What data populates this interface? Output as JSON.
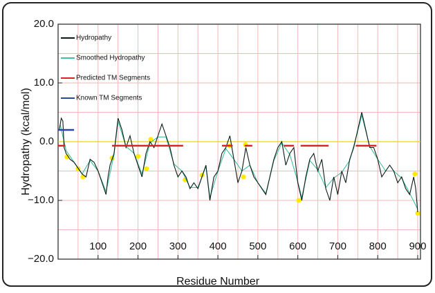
{
  "chart_data": {
    "type": "line",
    "xlabel": "Residue Number",
    "ylabel": "Hydropathy (kcal/mol)",
    "xlim": [
      0,
      907
    ],
    "ylim": [
      -20,
      20
    ],
    "xticks": [
      100,
      200,
      300,
      400,
      500,
      600,
      700,
      800,
      900
    ],
    "yticks": [
      {
        "value": -20,
        "label": "−20.0"
      },
      {
        "value": -10,
        "label": "−10.0"
      },
      {
        "value": 0,
        "label": "0.0"
      },
      {
        "value": 10,
        "label": "10.0"
      },
      {
        "value": 20,
        "label": "20.0"
      }
    ],
    "x_gridlines": [
      50,
      100,
      150,
      200,
      250,
      300,
      350,
      400,
      450,
      500,
      550,
      600,
      650,
      700,
      750,
      800,
      850,
      900
    ],
    "y_gridlines": [
      -15,
      -10,
      -5,
      0,
      5,
      10,
      15
    ],
    "grid_color": "#f2b8b8",
    "reference_line": {
      "value": 0,
      "color": "#e8d800"
    },
    "legend": "upper left",
    "series": [
      {
        "name": "Hydropathy",
        "color": "#0a1a14",
        "x": [
          3,
          8,
          12,
          15,
          20,
          30,
          40,
          50,
          60,
          70,
          80,
          90,
          100,
          110,
          120,
          125,
          130,
          140,
          150,
          160,
          170,
          180,
          190,
          200,
          210,
          220,
          230,
          240,
          250,
          260,
          270,
          280,
          290,
          300,
          310,
          320,
          330,
          340,
          350,
          360,
          370,
          380,
          390,
          400,
          410,
          420,
          430,
          440,
          450,
          460,
          470,
          480,
          490,
          500,
          510,
          520,
          530,
          540,
          550,
          560,
          570,
          580,
          590,
          600,
          610,
          620,
          630,
          640,
          650,
          660,
          670,
          680,
          690,
          700,
          710,
          720,
          730,
          740,
          750,
          760,
          770,
          780,
          790,
          800,
          810,
          820,
          830,
          840,
          850,
          860,
          870,
          880,
          890,
          895,
          900
        ],
        "values": [
          2,
          4,
          3.5,
          -1,
          -2,
          -3,
          -3.5,
          -4.5,
          -5.5,
          -6,
          -3,
          -3.5,
          -5,
          -7,
          -9,
          -6,
          -4,
          -2,
          4,
          2,
          -1,
          1,
          -2,
          -4,
          -6,
          -2,
          0,
          -1,
          1,
          3,
          1,
          -1,
          -4,
          -6,
          -5,
          -6,
          -8,
          -7,
          -8,
          -6,
          -4,
          -10,
          -6,
          -5,
          -2,
          -1,
          1,
          -3,
          -7,
          -5,
          -1,
          -4,
          -6,
          -7,
          -8,
          -9,
          -6,
          -3,
          -1,
          0,
          -4,
          -2,
          -1,
          -7,
          -10,
          -6,
          -3,
          -2,
          -5,
          -3,
          -8,
          -10,
          -6,
          -9,
          -5,
          -7,
          -3,
          -1,
          2,
          5,
          2,
          -1,
          -1,
          -3,
          -6,
          -5,
          -4,
          -5,
          -7,
          -6,
          -8,
          -9,
          -6,
          -8,
          -12
        ]
      },
      {
        "name": "Smoothed Hydropathy",
        "color": "#3fbf9f",
        "x": [
          5,
          20,
          40,
          60,
          80,
          100,
          120,
          140,
          150,
          170,
          190,
          210,
          230,
          250,
          270,
          290,
          310,
          330,
          350,
          370,
          380,
          400,
          420,
          440,
          460,
          480,
          500,
          520,
          540,
          560,
          580,
          600,
          610,
          630,
          650,
          670,
          690,
          710,
          730,
          750,
          760,
          780,
          800,
          820,
          840,
          860,
          880,
          900
        ],
        "values": [
          3,
          -1.5,
          -3.5,
          -5.5,
          -3.2,
          -5,
          -8.5,
          -2.2,
          3.5,
          -0.8,
          -2,
          -5.5,
          -0.2,
          0.8,
          0.8,
          -3.8,
          -5,
          -7.8,
          -7.8,
          -4.2,
          -9.5,
          -5,
          -1.2,
          -3,
          -5,
          -4,
          -7,
          -8.8,
          -3.2,
          -0.2,
          -2.2,
          -6.8,
          -9.5,
          -3.2,
          -4.8,
          -7.8,
          -6.2,
          -5.2,
          -3.2,
          1.8,
          4.5,
          -0.8,
          -3,
          -5,
          -5,
          -6.2,
          -8.8,
          -11.5
        ]
      },
      {
        "name": "Predicted TM Segments",
        "color": "#e02020",
        "x": [
          0,
          18,
          null,
          135,
          313,
          null,
          410,
          437,
          null,
          467,
          486,
          null,
          565,
          590,
          null,
          607,
          677,
          null,
          745,
          797
        ],
        "values": [
          -0.7,
          -0.7,
          null,
          -0.7,
          -0.7,
          null,
          -0.7,
          -0.7,
          null,
          -0.7,
          -0.7,
          null,
          -0.7,
          -0.7,
          null,
          -0.7,
          -0.7,
          null,
          -0.7,
          -0.7
        ]
      },
      {
        "name": "Known TM Segments",
        "color": "#2a44a8",
        "x": [
          0,
          40
        ],
        "values": [
          2,
          2
        ]
      },
      {
        "type": "scatter",
        "color": "#ffea00",
        "x": [
          22,
          50,
          62,
          135,
          200,
          221,
          232,
          318,
          360,
          429,
          464,
          469,
          602,
          893,
          900
        ],
        "values": [
          -2.6,
          -4.6,
          -6,
          -2.8,
          -2.5,
          -4.6,
          0.4,
          -6.5,
          -5.7,
          -0.7,
          -6,
          -0.5,
          -10,
          -5.5,
          -12.2
        ]
      }
    ]
  }
}
